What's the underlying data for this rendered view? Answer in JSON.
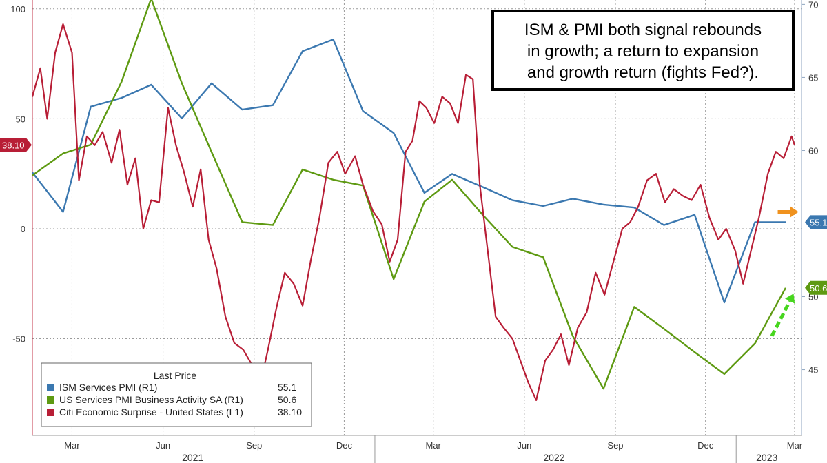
{
  "chart_data": {
    "type": "line",
    "annotation": [
      "ISM & PMI both signal rebounds",
      "in growth; a return to expansion",
      "and growth return (fights Fed?)."
    ],
    "x_ticks": [
      "Mar",
      "Jun",
      "Sep",
      "Dec",
      "Mar",
      "Jun",
      "Sep",
      "Dec",
      "Mar"
    ],
    "x_tick_dates": [
      "2021-03-01",
      "2021-06-01",
      "2021-09-01",
      "2021-12-01",
      "2022-03-01",
      "2022-06-01",
      "2022-09-01",
      "2022-12-01",
      "2023-03-01"
    ],
    "year_labels": [
      {
        "label": "2021",
        "date": "2021-07-01"
      },
      {
        "label": "2022",
        "date": "2022-07-01"
      },
      {
        "label": "2023",
        "date": "2023-02-01"
      }
    ],
    "y_left": {
      "ticks": [
        100,
        50,
        0,
        -50
      ],
      "tick_labels": [
        "100",
        "50",
        "0",
        "-50"
      ],
      "range": [
        -94,
        104
      ]
    },
    "y_right": {
      "ticks": [
        70,
        65,
        60,
        50,
        45
      ],
      "tick_labels": [
        "70",
        "65",
        "60",
        "50",
        "45"
      ],
      "range": [
        40.5,
        70.3
      ]
    },
    "x_range": [
      "2021-01-20",
      "2023-03-08"
    ],
    "grid": true,
    "legend": {
      "title": "Last Price",
      "placement": "bottom-left",
      "items": [
        {
          "label": "ISM Services PMI  (R1)",
          "value": "55.1",
          "color": "#3b78b0"
        },
        {
          "label": "US Services PMI Business Activity SA  (R1)",
          "value": "50.6",
          "color": "#5e9a12"
        },
        {
          "label": "Citi Economic Surprise - United States  (L1)",
          "value": "38.10",
          "color": "#b81e36"
        }
      ]
    },
    "last_tags": [
      {
        "text": "38.10",
        "axis": "left",
        "value": 38.1,
        "color": "#b81e36"
      },
      {
        "text": "55.1",
        "axis": "right",
        "value": 55.1,
        "color": "#3b78b0"
      },
      {
        "text": "50.6",
        "axis": "right",
        "value": 50.6,
        "color": "#5e9a12"
      }
    ],
    "arrows": [
      {
        "color": "#f0921e",
        "style": "solid",
        "from": {
          "date": "2023-02-12",
          "value": 55.8
        },
        "to": {
          "date": "2023-03-05",
          "value": 55.8
        }
      },
      {
        "color": "#47d61e",
        "style": "dashed",
        "from": {
          "date": "2023-02-06",
          "value": 47.3
        },
        "to": {
          "date": "2023-02-28",
          "value": 50.2
        }
      }
    ],
    "series": [
      {
        "name": "ISM Services PMI",
        "axis": "right",
        "color": "#3b78b0",
        "points": [
          [
            "2021-01-20",
            58.5
          ],
          [
            "2021-02-20",
            55.8
          ],
          [
            "2021-03-20",
            63.0
          ],
          [
            "2021-04-20",
            63.6
          ],
          [
            "2021-05-20",
            64.5
          ],
          [
            "2021-06-20",
            62.2
          ],
          [
            "2021-07-20",
            64.6
          ],
          [
            "2021-08-20",
            62.8
          ],
          [
            "2021-09-20",
            63.1
          ],
          [
            "2021-10-20",
            66.8
          ],
          [
            "2021-11-20",
            67.6
          ],
          [
            "2021-12-20",
            62.7
          ],
          [
            "2022-01-20",
            61.2
          ],
          [
            "2022-02-20",
            57.1
          ],
          [
            "2022-03-20",
            58.4
          ],
          [
            "2022-04-20",
            57.5
          ],
          [
            "2022-05-20",
            56.6
          ],
          [
            "2022-06-20",
            56.2
          ],
          [
            "2022-07-20",
            56.7
          ],
          [
            "2022-08-20",
            56.3
          ],
          [
            "2022-09-20",
            56.1
          ],
          [
            "2022-10-20",
            54.9
          ],
          [
            "2022-11-20",
            55.6
          ],
          [
            "2022-12-20",
            49.6
          ],
          [
            "2023-01-20",
            55.1
          ],
          [
            "2023-02-20",
            55.1
          ]
        ]
      },
      {
        "name": "US Services PMI Business Activity SA",
        "axis": "right",
        "color": "#5e9a12",
        "points": [
          [
            "2021-01-20",
            58.3
          ],
          [
            "2021-02-20",
            59.8
          ],
          [
            "2021-03-20",
            60.4
          ],
          [
            "2021-04-20",
            64.7
          ],
          [
            "2021-05-20",
            70.4
          ],
          [
            "2021-06-20",
            64.6
          ],
          [
            "2021-07-20",
            59.9
          ],
          [
            "2021-08-20",
            55.1
          ],
          [
            "2021-09-20",
            54.9
          ],
          [
            "2021-10-20",
            58.7
          ],
          [
            "2021-11-20",
            58.0
          ],
          [
            "2021-12-20",
            57.6
          ],
          [
            "2022-01-20",
            51.2
          ],
          [
            "2022-02-20",
            56.5
          ],
          [
            "2022-03-20",
            58.0
          ],
          [
            "2022-04-20",
            55.6
          ],
          [
            "2022-05-20",
            53.4
          ],
          [
            "2022-06-20",
            52.7
          ],
          [
            "2022-07-20",
            47.3
          ],
          [
            "2022-08-20",
            43.7
          ],
          [
            "2022-09-20",
            49.3
          ],
          [
            "2022-10-20",
            47.8
          ],
          [
            "2022-11-20",
            46.2
          ],
          [
            "2022-12-20",
            44.7
          ],
          [
            "2023-01-20",
            46.8
          ],
          [
            "2023-02-20",
            50.6
          ]
        ]
      },
      {
        "name": "Citi Economic Surprise - United States",
        "axis": "left",
        "color": "#b81e36",
        "points": [
          [
            "2021-01-20",
            60
          ],
          [
            "2021-01-28",
            73
          ],
          [
            "2021-02-04",
            50
          ],
          [
            "2021-02-12",
            80
          ],
          [
            "2021-02-20",
            93
          ],
          [
            "2021-03-01",
            80
          ],
          [
            "2021-03-08",
            22
          ],
          [
            "2021-03-16",
            42
          ],
          [
            "2021-03-24",
            38
          ],
          [
            "2021-04-01",
            44
          ],
          [
            "2021-04-10",
            30
          ],
          [
            "2021-04-18",
            45
          ],
          [
            "2021-04-26",
            20
          ],
          [
            "2021-05-04",
            32
          ],
          [
            "2021-05-12",
            0
          ],
          [
            "2021-05-20",
            13
          ],
          [
            "2021-05-28",
            12
          ],
          [
            "2021-06-06",
            55
          ],
          [
            "2021-06-14",
            38
          ],
          [
            "2021-06-22",
            26
          ],
          [
            "2021-07-01",
            10
          ],
          [
            "2021-07-09",
            27
          ],
          [
            "2021-07-17",
            -5
          ],
          [
            "2021-07-25",
            -18
          ],
          [
            "2021-08-03",
            -40
          ],
          [
            "2021-08-12",
            -52
          ],
          [
            "2021-08-21",
            -55
          ],
          [
            "2021-08-30",
            -62
          ],
          [
            "2021-09-06",
            -73
          ],
          [
            "2021-09-15",
            -55
          ],
          [
            "2021-09-24",
            -35
          ],
          [
            "2021-10-02",
            -20
          ],
          [
            "2021-10-11",
            -25
          ],
          [
            "2021-10-20",
            -35
          ],
          [
            "2021-10-28",
            -15
          ],
          [
            "2021-11-06",
            5
          ],
          [
            "2021-11-15",
            30
          ],
          [
            "2021-11-24",
            35
          ],
          [
            "2021-12-02",
            25
          ],
          [
            "2021-12-12",
            33
          ],
          [
            "2021-12-20",
            20
          ],
          [
            "2021-12-30",
            8
          ],
          [
            "2022-01-08",
            2
          ],
          [
            "2022-01-16",
            -15
          ],
          [
            "2022-01-24",
            -5
          ],
          [
            "2022-02-01",
            35
          ],
          [
            "2022-02-08",
            40
          ],
          [
            "2022-02-15",
            58
          ],
          [
            "2022-02-22",
            55
          ],
          [
            "2022-03-02",
            48
          ],
          [
            "2022-03-10",
            60
          ],
          [
            "2022-03-18",
            57
          ],
          [
            "2022-03-26",
            48
          ],
          [
            "2022-04-03",
            70
          ],
          [
            "2022-04-10",
            68
          ],
          [
            "2022-04-17",
            20
          ],
          [
            "2022-04-25",
            -10
          ],
          [
            "2022-05-03",
            -40
          ],
          [
            "2022-05-11",
            -45
          ],
          [
            "2022-05-20",
            -50
          ],
          [
            "2022-05-28",
            -60
          ],
          [
            "2022-06-05",
            -70
          ],
          [
            "2022-06-13",
            -78
          ],
          [
            "2022-06-22",
            -60
          ],
          [
            "2022-06-30",
            -55
          ],
          [
            "2022-07-08",
            -48
          ],
          [
            "2022-07-16",
            -62
          ],
          [
            "2022-07-25",
            -45
          ],
          [
            "2022-08-03",
            -38
          ],
          [
            "2022-08-12",
            -20
          ],
          [
            "2022-08-21",
            -30
          ],
          [
            "2022-08-30",
            -15
          ],
          [
            "2022-09-08",
            0
          ],
          [
            "2022-09-16",
            3
          ],
          [
            "2022-09-24",
            10
          ],
          [
            "2022-10-03",
            22
          ],
          [
            "2022-10-12",
            25
          ],
          [
            "2022-10-21",
            12
          ],
          [
            "2022-10-30",
            18
          ],
          [
            "2022-11-08",
            15
          ],
          [
            "2022-11-17",
            13
          ],
          [
            "2022-11-26",
            20
          ],
          [
            "2022-12-05",
            5
          ],
          [
            "2022-12-14",
            -5
          ],
          [
            "2022-12-22",
            0
          ],
          [
            "2022-12-31",
            -10
          ],
          [
            "2023-01-08",
            -25
          ],
          [
            "2023-01-16",
            -10
          ],
          [
            "2023-01-24",
            5
          ],
          [
            "2023-02-02",
            25
          ],
          [
            "2023-02-10",
            35
          ],
          [
            "2023-02-18",
            32
          ],
          [
            "2023-02-26",
            42
          ],
          [
            "2023-03-01",
            38.1
          ]
        ]
      }
    ]
  }
}
